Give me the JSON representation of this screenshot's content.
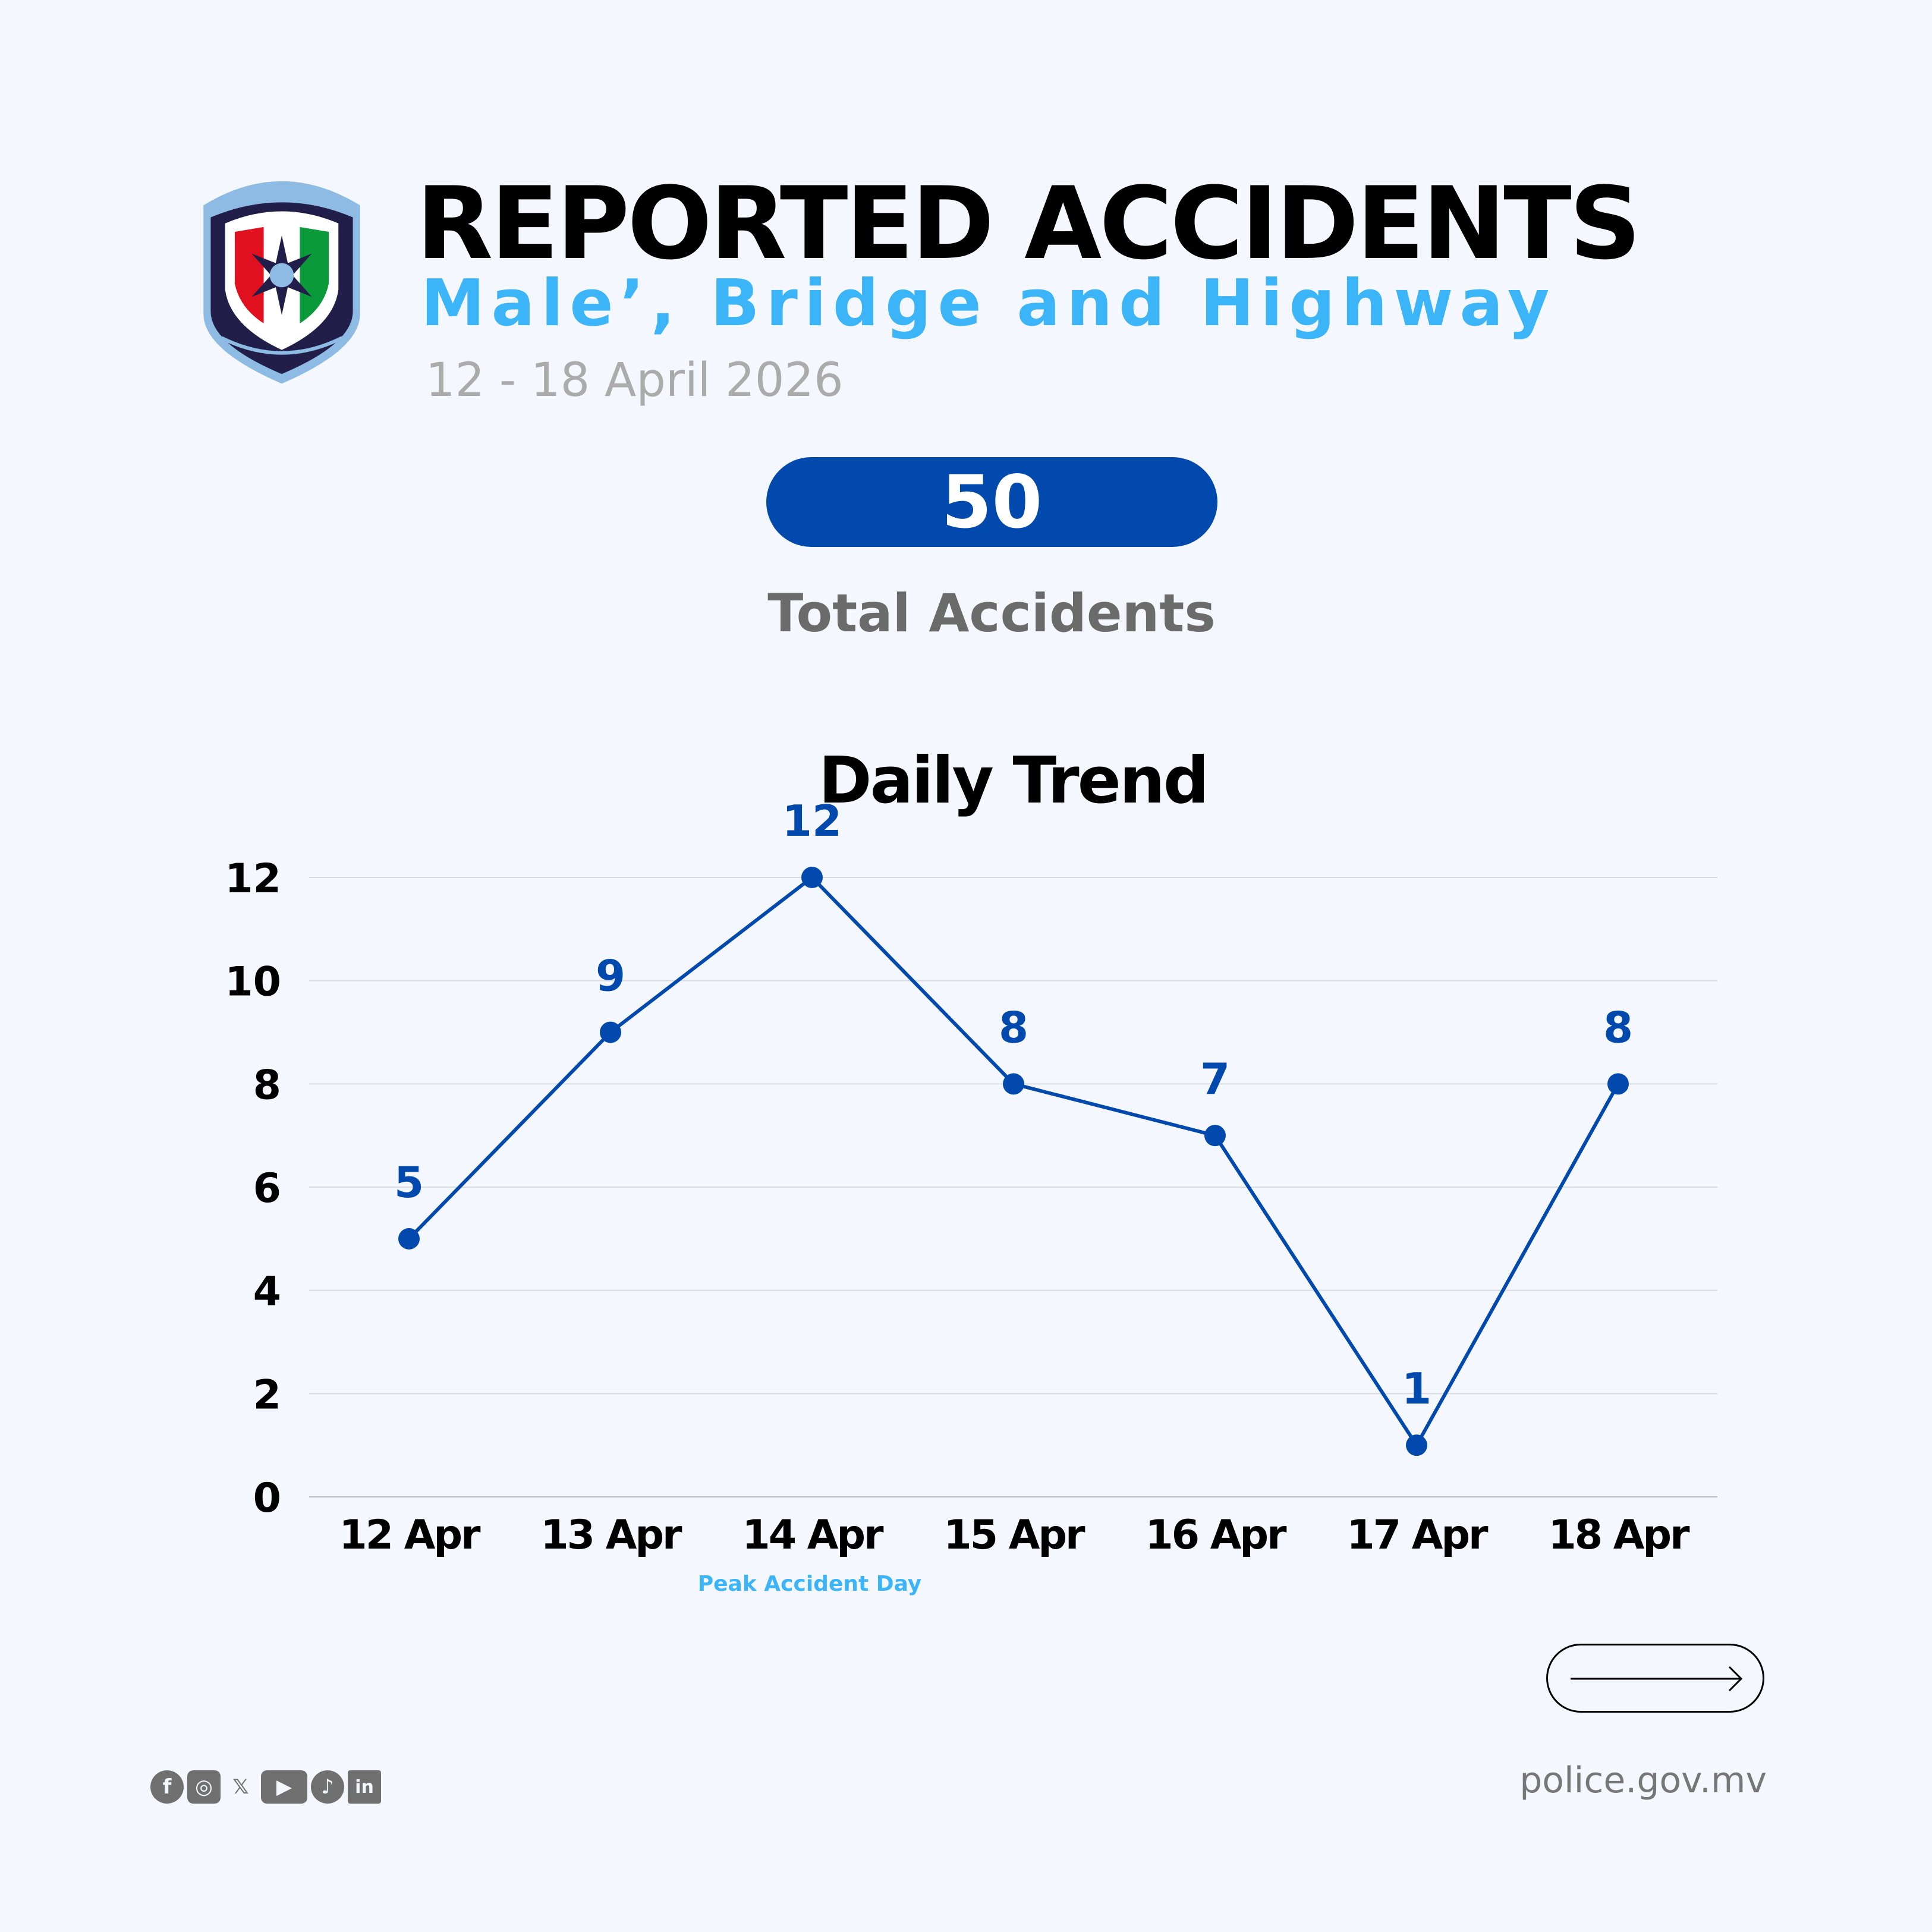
{
  "header": {
    "title": "REPORTED ACCIDENTS",
    "subtitle": "Male’, Bridge and Highway",
    "date_range": "12 - 18 April 2026"
  },
  "summary": {
    "total": "50",
    "total_label": "Total Accidents"
  },
  "colors": {
    "background": "#F4F8FE",
    "accent_blue": "#0249AD",
    "light_blue": "#3CB4F8",
    "gray_text": "#6B6B6B"
  },
  "chart_data": {
    "type": "line",
    "title": "Daily Trend",
    "categories": [
      "12 Apr",
      "13 Apr",
      "14 Apr",
      "15 Apr",
      "16 Apr",
      "17 Apr",
      "18 Apr"
    ],
    "values": [
      5,
      9,
      12,
      8,
      7,
      1,
      8
    ],
    "data_labels": [
      "5",
      "9",
      "12",
      "8",
      "7",
      "1",
      "8"
    ],
    "yticks": [
      "0",
      "2",
      "4",
      "6",
      "8",
      "10",
      "12"
    ],
    "ylim": [
      0,
      12
    ],
    "grid": "horizontal",
    "annotation": {
      "category": "14 Apr",
      "text": "Peak Accident Day"
    },
    "line_color": "#0249AD"
  },
  "footer": {
    "social_icons": [
      "facebook-icon",
      "instagram-icon",
      "x-icon",
      "youtube-icon",
      "tiktok-icon",
      "linkedin-icon"
    ],
    "website": "police.gov.mv",
    "next_icon": "arrow-right-icon"
  }
}
